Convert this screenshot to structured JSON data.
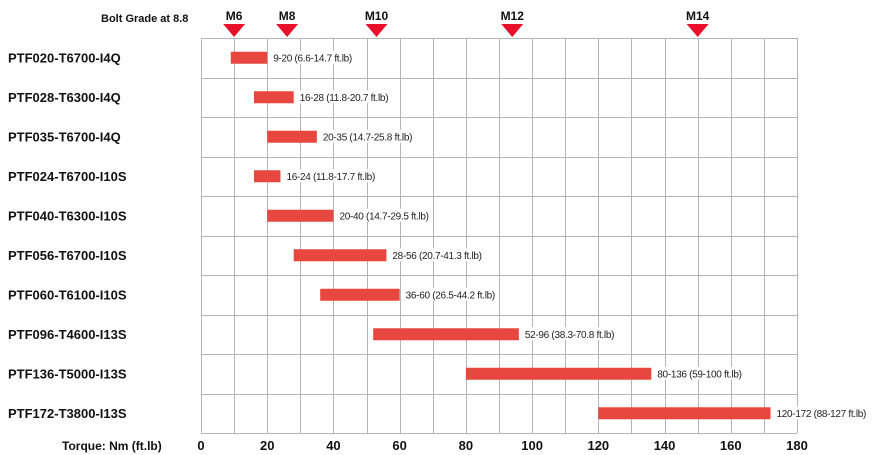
{
  "chart_data": {
    "type": "bar",
    "orientation": "horizontal",
    "header_label": "Bolt Grade at 8.8",
    "xlabel": "Torque: Nm (ft.lb)",
    "xlim": [
      0,
      180
    ],
    "xticks": [
      0,
      20,
      40,
      60,
      80,
      100,
      120,
      140,
      160,
      180
    ],
    "grid": true,
    "bar_color": "#e8473f",
    "marker_color": "#e8102a",
    "bolt_grades": [
      {
        "label": "M6",
        "value": 10
      },
      {
        "label": "M8",
        "value": 26
      },
      {
        "label": "M10",
        "value": 53
      },
      {
        "label": "M12",
        "value": 94
      },
      {
        "label": "M14",
        "value": 150
      }
    ],
    "rows": [
      {
        "name": "PTF020-T6700-I4Q",
        "min": 9,
        "max": 20,
        "label": "9-20 (6.6-14.7 ft.lb)"
      },
      {
        "name": "PTF028-T6300-I4Q",
        "min": 16,
        "max": 28,
        "label": "16-28 (11.8-20.7 ft.lb)"
      },
      {
        "name": "PTF035-T6700-I4Q",
        "min": 20,
        "max": 35,
        "label": "20-35 (14.7-25.8 ft.lb)"
      },
      {
        "name": "PTF024-T6700-I10S",
        "min": 16,
        "max": 24,
        "label": "16-24 (11.8-17.7 ft.lb)"
      },
      {
        "name": "PTF040-T6300-I10S",
        "min": 20,
        "max": 40,
        "label": "20-40 (14.7-29.5 ft.lb)"
      },
      {
        "name": "PTF056-T6700-I10S",
        "min": 28,
        "max": 56,
        "label": "28-56 (20.7-41.3 ft.lb)"
      },
      {
        "name": "PTF060-T6100-I10S",
        "min": 36,
        "max": 60,
        "label": "36-60 (26.5-44.2 ft.lb)"
      },
      {
        "name": "PTF096-T4600-I13S",
        "min": 52,
        "max": 96,
        "label": "52-96 (38.3-70.8 ft.lb)"
      },
      {
        "name": "PTF136-T5000-I13S",
        "min": 80,
        "max": 136,
        "label": "80-136 (59-100 ft.lb)"
      },
      {
        "name": "PTF172-T3800-I13S",
        "min": 120,
        "max": 172,
        "label": "120-172 (88-127 ft.lb)"
      }
    ]
  }
}
